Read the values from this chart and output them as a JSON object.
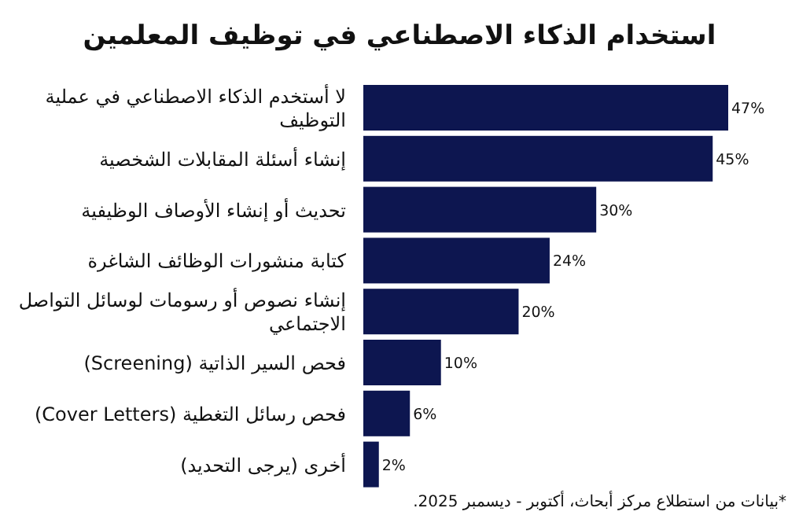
{
  "chart_data": {
    "type": "bar",
    "orientation": "horizontal",
    "title": "استخدام الذكاء الاصطناعي في توظيف المعلمين",
    "categories": [
      "لا أستخدم الذكاء الاصطناعي في عملية التوظيف",
      "إنشاء أسئلة المقابلات الشخصية",
      "تحديث أو إنشاء الأوصاف الوظيفية",
      "كتابة منشورات الوظائف الشاغرة",
      "إنشاء نصوص أو رسومات لوسائل التواصل الاجتماعي",
      "فحص السير الذاتية (Screening)",
      "فحص رسائل التغطية (Cover Letters)",
      "أخرى (يرجى التحديد)"
    ],
    "values": [
      47,
      45,
      30,
      24,
      20,
      10,
      6,
      2
    ],
    "value_labels": [
      "47%",
      "45%",
      "30%",
      "24%",
      "20%",
      "10%",
      "6%",
      "2%"
    ],
    "color": "#0d1650",
    "annotations": [
      "*بيانات من استطلاع مركز أبحاث، أكتوبر - ديسمبر 2025."
    ]
  }
}
